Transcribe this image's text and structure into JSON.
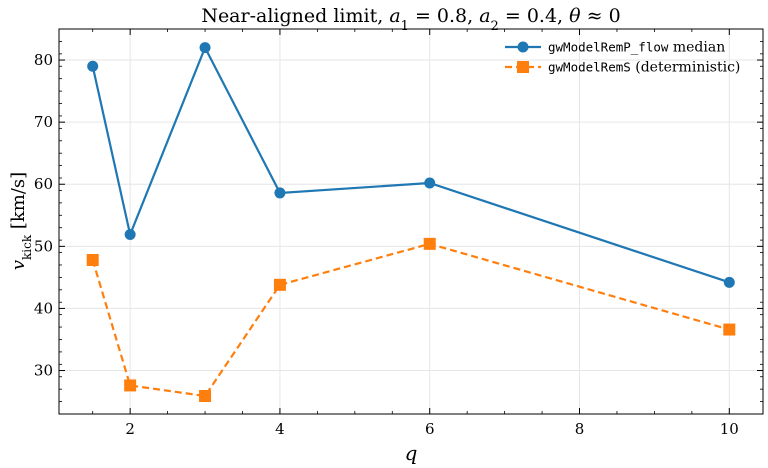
{
  "chart_data": {
    "type": "line",
    "title": "Near-aligned limit, a₁ = 0.8, a₂ = 0.4, θ ≈ 0",
    "xlabel": "q",
    "ylabel": "v_kick [km/s]",
    "xlim": [
      1.05,
      10.45
    ],
    "ylim": [
      23,
      85
    ],
    "xticks": [
      2,
      4,
      6,
      8,
      10
    ],
    "yticks": [
      30,
      40,
      50,
      60,
      70,
      80
    ],
    "grid": true,
    "legend_position": "top-right",
    "x": [
      1.5,
      2,
      3,
      4,
      6,
      10
    ],
    "series": [
      {
        "name_code": "gwModelRemP_flow",
        "name_suffix": "median",
        "values": [
          79.0,
          51.9,
          82.0,
          58.6,
          60.2,
          44.2
        ],
        "color": "#1f77b4",
        "marker": "circle",
        "linestyle": "solid"
      },
      {
        "name_code": "gwModelRemS",
        "name_suffix": "(deterministic)",
        "values": [
          47.8,
          27.6,
          25.9,
          43.8,
          50.4,
          36.6
        ],
        "color": "#ff7f0e",
        "marker": "square",
        "linestyle": "dashed"
      }
    ]
  }
}
